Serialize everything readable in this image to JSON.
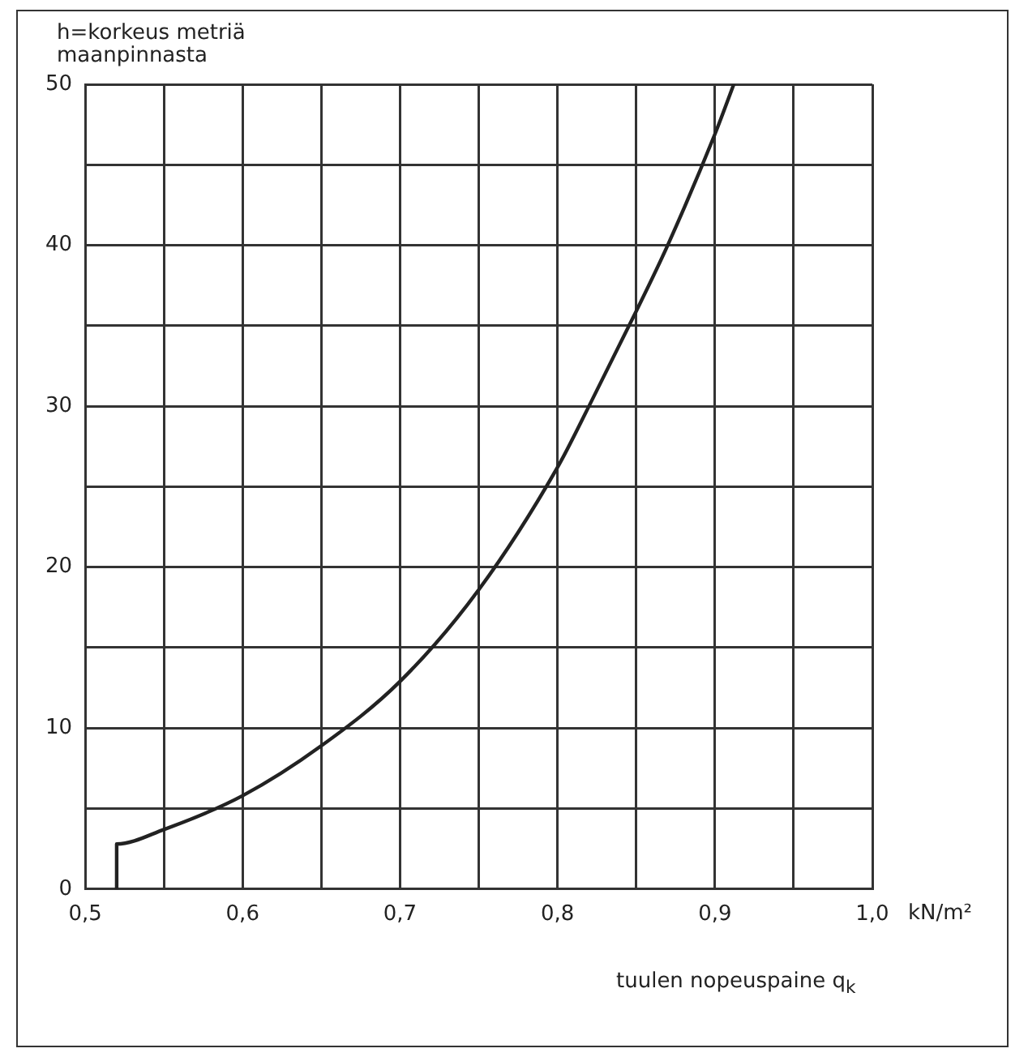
{
  "chart_data": {
    "type": "line",
    "ylabel": "h=korkeus metriä maanpinnasta",
    "xlabel": "tuulen nopeuspaine q$_{k}$",
    "annotations": [
      "kN/m²"
    ],
    "x": [
      0.52,
      0.52,
      0.55,
      0.6,
      0.65,
      0.7,
      0.75,
      0.8,
      0.82,
      0.85,
      0.87,
      0.9,
      0.912
    ],
    "series": [
      {
        "color": "#222222",
        "values": [
          0,
          2.8,
          3.7,
          5.8,
          8.9,
          12.9,
          18.6,
          26.2,
          30,
          35.9,
          40,
          46.9,
          50
        ]
      }
    ],
    "xlim": [
      0.5,
      1.0
    ],
    "xticks": [
      {
        "value": 0.5,
        "label": "0,5"
      },
      {
        "value": 0.55,
        "label": null
      },
      {
        "value": 0.6,
        "label": "0,6"
      },
      {
        "value": 0.65,
        "label": null
      },
      {
        "value": 0.7,
        "label": "0,7"
      },
      {
        "value": 0.75,
        "label": null
      },
      {
        "value": 0.8,
        "label": "0,8"
      },
      {
        "value": 0.85,
        "label": null
      },
      {
        "value": 0.9,
        "label": "0,9"
      },
      {
        "value": 0.95,
        "label": null
      },
      {
        "value": 1.0,
        "label": "1,0"
      }
    ],
    "ylim": [
      0,
      50
    ],
    "yticks": [
      0,
      {
        "value": 5,
        "label": null
      },
      10,
      {
        "value": 15,
        "label": null
      },
      20,
      {
        "value": 25,
        "label": null
      },
      30,
      {
        "value": 35,
        "label": null
      },
      40,
      {
        "value": 45,
        "label": null
      },
      50
    ],
    "grid": true,
    "marker": "none",
    "line_style": "solid"
  }
}
